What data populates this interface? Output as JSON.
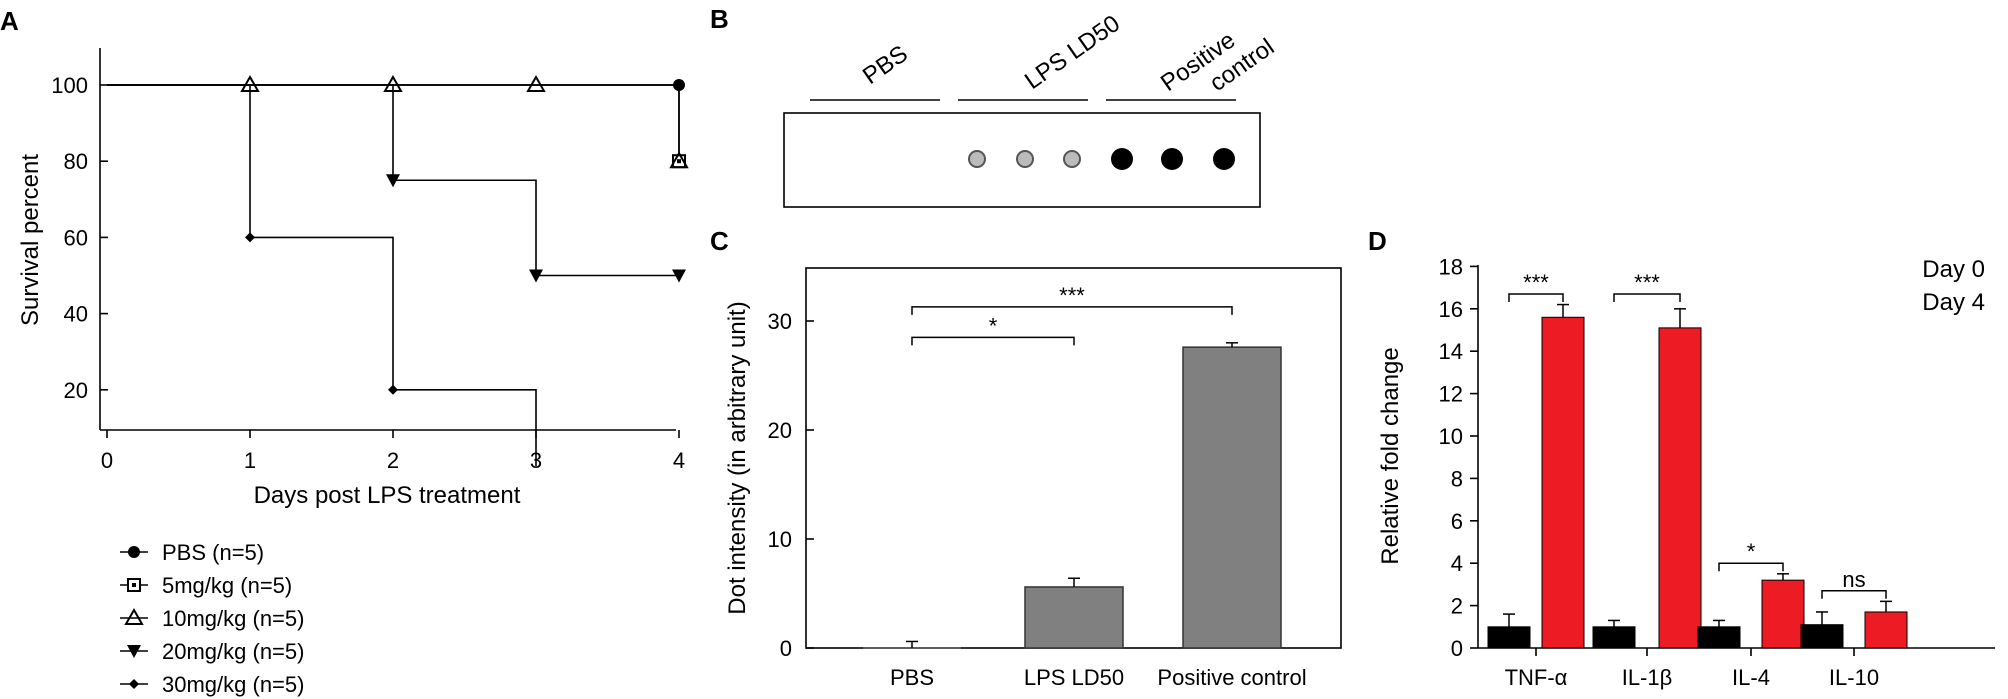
{
  "panels": {
    "a": "A",
    "b": "B",
    "c": "C",
    "d": "D"
  },
  "chart_data": [
    {
      "type": "line",
      "xlabel": "Days post LPS treatment",
      "ylabel": "Survival percent",
      "xlim": [
        0,
        4
      ],
      "ylim": [
        10,
        110
      ],
      "xticks": [
        0,
        1,
        2,
        3,
        4
      ],
      "yticks": [
        20,
        40,
        60,
        80,
        100
      ],
      "legend": "bottom-left",
      "series": [
        {
          "name": "PBS (n=5)",
          "marker": "circle",
          "points": [
            [
              0,
              100
            ],
            [
              4,
              100
            ]
          ]
        },
        {
          "name": "5mg/kg (n=5)",
          "marker": "square-open",
          "points": [
            [
              0,
              100
            ],
            [
              1,
              100
            ],
            [
              2,
              100
            ],
            [
              3,
              100
            ],
            [
              4,
              100
            ],
            [
              4,
              80
            ]
          ]
        },
        {
          "name": "10mg/kg (n=5)",
          "marker": "triangle-up-open",
          "points": [
            [
              0,
              100
            ],
            [
              1,
              100
            ],
            [
              2,
              100
            ],
            [
              3,
              100
            ],
            [
              4,
              100
            ],
            [
              4,
              80
            ]
          ]
        },
        {
          "name": "20mg/kg (n=5)",
          "marker": "triangle-down",
          "points": [
            [
              0,
              100
            ],
            [
              1,
              100
            ],
            [
              2,
              100
            ],
            [
              2,
              75
            ],
            [
              3,
              75
            ],
            [
              3,
              50
            ],
            [
              4,
              50
            ]
          ]
        },
        {
          "name": "30mg/kg (n=5)",
          "marker": "diamond",
          "points": [
            [
              0,
              100
            ],
            [
              1,
              100
            ],
            [
              1,
              60
            ],
            [
              2,
              60
            ],
            [
              2,
              20
            ],
            [
              3,
              20
            ],
            [
              3,
              0
            ]
          ]
        }
      ],
      "markers": [
        {
          "series": "PBS (n=5)",
          "x": 4,
          "y": 100
        },
        {
          "series": "5mg/kg (n=5)",
          "x": 4,
          "y": 80
        },
        {
          "series": "10mg/kg (n=5)",
          "x": 4,
          "y": 80
        },
        {
          "series": "10mg/kg (n=5)",
          "x": 1,
          "y": 100
        },
        {
          "series": "10mg/kg (n=5)",
          "x": 2,
          "y": 100
        },
        {
          "series": "10mg/kg (n=5)",
          "x": 3,
          "y": 100
        },
        {
          "series": "20mg/kg (n=5)",
          "x": 2,
          "y": 75
        },
        {
          "series": "20mg/kg (n=5)",
          "x": 3,
          "y": 50
        },
        {
          "series": "20mg/kg (n=5)",
          "x": 4,
          "y": 50
        },
        {
          "series": "30mg/kg (n=5)",
          "x": 1,
          "y": 60
        },
        {
          "series": "30mg/kg (n=5)",
          "x": 2,
          "y": 20
        }
      ]
    },
    {
      "type": "other",
      "column_groups": [
        "PBS",
        "LPS LD50",
        "Positive\ncontrol"
      ],
      "dots": [
        {
          "group": "LPS LD50",
          "intensity": "faint"
        },
        {
          "group": "LPS LD50",
          "intensity": "faint"
        },
        {
          "group": "LPS LD50",
          "intensity": "faint"
        },
        {
          "group": "Positive\ncontrol",
          "intensity": "strong"
        },
        {
          "group": "Positive\ncontrol",
          "intensity": "strong"
        },
        {
          "group": "Positive\ncontrol",
          "intensity": "strong"
        }
      ]
    },
    {
      "type": "bar",
      "ylabel": "Dot intensity (in arbitrary unit)",
      "ylim": [
        0,
        35
      ],
      "yticks": [
        0,
        10,
        20,
        30
      ],
      "categories": [
        "PBS",
        "LPS LD50",
        "Positive control"
      ],
      "values": [
        0,
        5.6,
        27.6
      ],
      "errors": [
        0.6,
        0.8,
        0.4
      ],
      "bar_color": "#808080",
      "significance": [
        {
          "from": "PBS",
          "to": "LPS LD50",
          "label": "*",
          "y": 28.5
        },
        {
          "from": "PBS",
          "to": "Positive control",
          "label": "***",
          "y": 31.3
        }
      ]
    },
    {
      "type": "bar",
      "ylabel": "Relative fold change",
      "ylim": [
        0,
        18
      ],
      "yticks": [
        0,
        2,
        4,
        6,
        8,
        10,
        12,
        14,
        16,
        18
      ],
      "categories": [
        "TNF-α",
        "IL-1β",
        "IL-4",
        "IL-10"
      ],
      "series": [
        {
          "name": "Day 0",
          "color": "#000000",
          "values": [
            1.0,
            1.0,
            1.0,
            1.1
          ],
          "errors": [
            0.6,
            0.3,
            0.3,
            0.6
          ]
        },
        {
          "name": "Day 4",
          "color": "#ED1C24",
          "values": [
            15.6,
            15.1,
            3.2,
            1.7
          ],
          "errors": [
            0.6,
            0.9,
            0.3,
            0.5
          ]
        }
      ],
      "legend": "top-right",
      "significance": [
        {
          "category": "TNF-α",
          "label": "***",
          "y": 16.7
        },
        {
          "category": "IL-1β",
          "label": "***",
          "y": 16.7
        },
        {
          "category": "IL-4",
          "label": "*",
          "y": 4.0
        },
        {
          "category": "IL-10",
          "label": "ns",
          "y": 2.7
        }
      ]
    }
  ]
}
